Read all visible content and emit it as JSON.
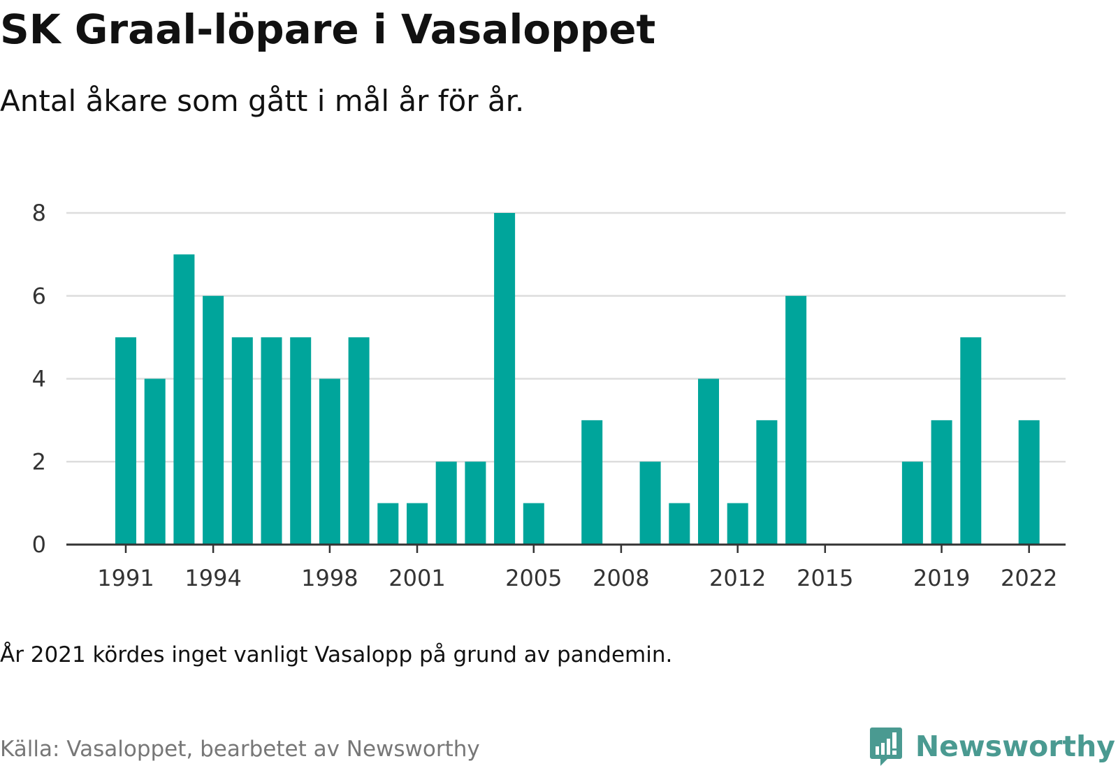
{
  "header": {
    "title": "SK Graal-löpare i Vasaloppet",
    "subtitle": "Antal åkare som gått i mål år för år."
  },
  "footer": {
    "note": "År 2021 kördes inget vanligt Vasalopp på grund av pandemin.",
    "source": "Källa: Vasaloppet, bearbetet av Newsworthy",
    "brand": "Newsworthy",
    "brand_icon": "newsworthy-logo-icon"
  },
  "colors": {
    "bar": "#00a59b",
    "grid": "#dddddd",
    "axis": "#333333",
    "brand": "#4a9a91"
  },
  "chart_data": {
    "type": "bar",
    "title": "SK Graal-löpare i Vasaloppet",
    "subtitle": "Antal åkare som gått i mål år för år.",
    "categories": [
      1991,
      1992,
      1993,
      1994,
      1995,
      1996,
      1997,
      1998,
      1999,
      2000,
      2001,
      2002,
      2003,
      2004,
      2005,
      2006,
      2007,
      2008,
      2009,
      2010,
      2011,
      2012,
      2013,
      2014,
      2015,
      2016,
      2017,
      2018,
      2019,
      2020,
      2021,
      2022
    ],
    "values": [
      5,
      4,
      7,
      6,
      5,
      5,
      5,
      4,
      5,
      1,
      1,
      2,
      2,
      8,
      1,
      0,
      3,
      0,
      2,
      1,
      4,
      1,
      3,
      6,
      0,
      0,
      0,
      2,
      3,
      5,
      0,
      3
    ],
    "x_tick_labels": [
      "1991",
      "1994",
      "1998",
      "2001",
      "2005",
      "2008",
      "2012",
      "2015",
      "2019",
      "2022"
    ],
    "y_tick_labels": [
      "0",
      "2",
      "4",
      "6",
      "8"
    ],
    "ylim": [
      0,
      8
    ],
    "grid": true,
    "legend": "none",
    "xlabel": "",
    "ylabel": ""
  }
}
